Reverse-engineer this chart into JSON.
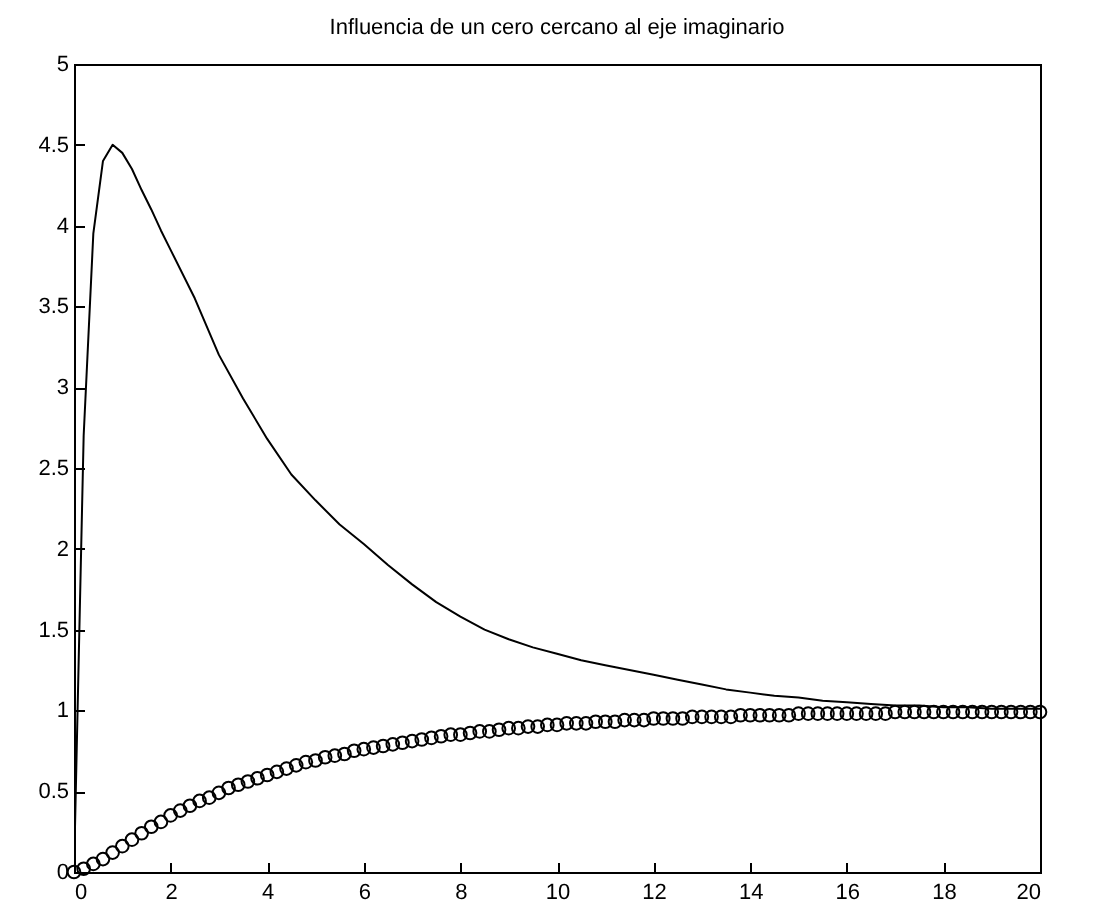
{
  "chart_data": {
    "type": "line",
    "title": "Influencia de un cero cercano al eje imaginario",
    "xlim": [
      0,
      20
    ],
    "ylim": [
      0,
      5
    ],
    "xticks": [
      0,
      2,
      4,
      6,
      8,
      10,
      12,
      14,
      16,
      18,
      20
    ],
    "yticks": [
      0,
      0.5,
      1,
      1.5,
      2,
      2.5,
      3,
      3.5,
      4,
      4.5,
      5
    ],
    "series": [
      {
        "color": "#000000",
        "line_style": "solid",
        "x": [
          0,
          0.2,
          0.4,
          0.6,
          0.8,
          1,
          1.2,
          1.4,
          1.6,
          1.8,
          2,
          2.5,
          3,
          3.5,
          4,
          4.5,
          5,
          5.5,
          6,
          6.5,
          7,
          7.5,
          8,
          8.5,
          9,
          9.5,
          10,
          10.5,
          11,
          11.5,
          12,
          12.5,
          13,
          13.5,
          14,
          14.5,
          15,
          15.5,
          16,
          16.5,
          17,
          17.5,
          18,
          18.5,
          19,
          19.5,
          20
        ],
        "values": [
          0,
          2.7,
          3.95,
          4.4,
          4.5,
          4.45,
          4.35,
          4.22,
          4.1,
          3.97,
          3.85,
          3.55,
          3.2,
          2.93,
          2.68,
          2.46,
          2.3,
          2.15,
          2.03,
          1.9,
          1.78,
          1.67,
          1.58,
          1.5,
          1.44,
          1.39,
          1.35,
          1.31,
          1.28,
          1.25,
          1.22,
          1.19,
          1.16,
          1.13,
          1.11,
          1.09,
          1.08,
          1.06,
          1.05,
          1.04,
          1.03,
          1.03,
          1.02,
          1.02,
          1.01,
          1.01,
          1.01
        ]
      },
      {
        "type": "scatter",
        "color": "#000000",
        "marker": "circle",
        "x": [
          0,
          0.2,
          0.4,
          0.6,
          0.8,
          1,
          1.2,
          1.4,
          1.6,
          1.8,
          2,
          2.2,
          2.4,
          2.6,
          2.8,
          3,
          3.2,
          3.4,
          3.6,
          3.8,
          4,
          4.2,
          4.4,
          4.6,
          4.8,
          5,
          5.2,
          5.4,
          5.6,
          5.8,
          6,
          6.2,
          6.4,
          6.6,
          6.8,
          7,
          7.2,
          7.4,
          7.6,
          7.8,
          8,
          8.2,
          8.4,
          8.6,
          8.8,
          9,
          9.2,
          9.4,
          9.6,
          9.8,
          10,
          10.2,
          10.4,
          10.6,
          10.8,
          11,
          11.2,
          11.4,
          11.6,
          11.8,
          12,
          12.2,
          12.4,
          12.6,
          12.8,
          13,
          13.2,
          13.4,
          13.6,
          13.8,
          14,
          14.2,
          14.4,
          14.6,
          14.8,
          15,
          15.2,
          15.4,
          15.6,
          15.8,
          16,
          16.2,
          16.4,
          16.6,
          16.8,
          17,
          17.2,
          17.4,
          17.6,
          17.8,
          18,
          18.2,
          18.4,
          18.6,
          18.8,
          19,
          19.2,
          19.4,
          19.6,
          19.8,
          20
        ],
        "values": [
          0,
          0.02,
          0.05,
          0.08,
          0.12,
          0.16,
          0.2,
          0.24,
          0.28,
          0.31,
          0.35,
          0.38,
          0.41,
          0.44,
          0.46,
          0.49,
          0.52,
          0.54,
          0.56,
          0.58,
          0.6,
          0.62,
          0.64,
          0.66,
          0.68,
          0.69,
          0.71,
          0.72,
          0.73,
          0.75,
          0.76,
          0.77,
          0.78,
          0.79,
          0.8,
          0.81,
          0.82,
          0.83,
          0.84,
          0.85,
          0.85,
          0.86,
          0.87,
          0.87,
          0.88,
          0.89,
          0.89,
          0.9,
          0.9,
          0.91,
          0.91,
          0.92,
          0.92,
          0.92,
          0.93,
          0.93,
          0.93,
          0.94,
          0.94,
          0.94,
          0.95,
          0.95,
          0.95,
          0.95,
          0.96,
          0.96,
          0.96,
          0.96,
          0.96,
          0.97,
          0.97,
          0.97,
          0.97,
          0.97,
          0.97,
          0.98,
          0.98,
          0.98,
          0.98,
          0.98,
          0.98,
          0.98,
          0.98,
          0.98,
          0.98,
          0.99,
          0.99,
          0.99,
          0.99,
          0.99,
          0.99,
          0.99,
          0.99,
          0.99,
          0.99,
          0.99,
          0.99,
          0.99,
          0.99,
          0.99,
          0.99
        ]
      }
    ]
  }
}
